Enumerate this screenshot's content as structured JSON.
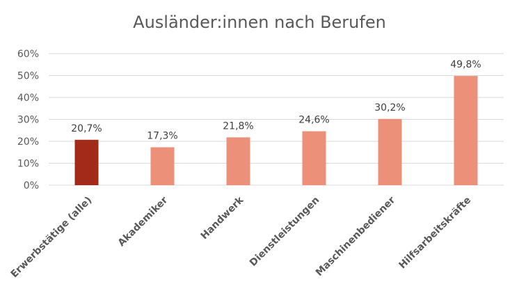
{
  "chart_data": {
    "type": "bar",
    "title": "Ausländer:innen nach Berufen",
    "categories": [
      "Erwerbstätige (alle)",
      "Akademiker",
      "Handwerk",
      "Dienstleistungen",
      "Maschinenbediener",
      "Hilfsarbeitskräfte"
    ],
    "values": [
      20.7,
      17.3,
      21.8,
      24.6,
      30.2,
      49.8
    ],
    "data_labels": [
      "20,7%",
      "17,3%",
      "21,8%",
      "24,6%",
      "30,2%",
      "49,8%"
    ],
    "highlight_index": 0,
    "colors": {
      "highlight": "#A12B18",
      "default": "#EC907A",
      "grid": "#D9D9D9",
      "text": "#595959"
    },
    "ylim": [
      0,
      60
    ],
    "yticks": [
      0,
      10,
      20,
      30,
      40,
      50,
      60
    ],
    "ytick_labels": [
      "0%",
      "10%",
      "20%",
      "30%",
      "40%",
      "50%",
      "60%"
    ],
    "xlabel": "",
    "ylabel": "",
    "grid": true,
    "legend": "none"
  }
}
